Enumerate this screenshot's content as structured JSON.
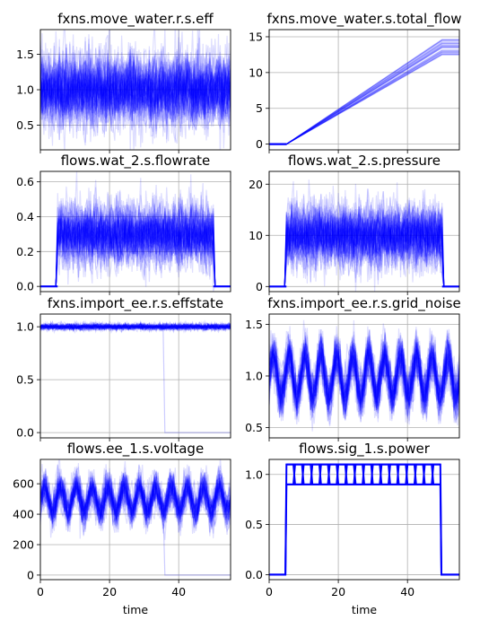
{
  "figure": {
    "line_color": "#0000ff",
    "grid_color": "#b0b0b0",
    "xlabel": "time"
  },
  "chart_data": [
    {
      "type": "line",
      "title": "fxns.move_water.r.s.eff",
      "xlim": [
        0,
        55
      ],
      "ylim": [
        0.15,
        1.85
      ],
      "xticks": [
        0,
        20,
        40
      ],
      "yticks": [
        0.5,
        1.0,
        1.5
      ],
      "ytick_labels": [
        "0.5",
        "1.0",
        "1.5"
      ],
      "show_x_tick_labels": false,
      "grid": true,
      "pattern": "noise",
      "mean": 1.0,
      "band": 0.25,
      "series_description": "many overlaid semi-transparent blue traces fluctuating around 1.0"
    },
    {
      "type": "line",
      "title": "fxns.move_water.s.total_flow",
      "xlim": [
        0,
        55
      ],
      "ylim": [
        -0.8,
        16
      ],
      "xticks": [
        0,
        20,
        40
      ],
      "yticks": [
        0,
        5,
        10,
        15
      ],
      "ytick_labels": [
        "0",
        "5",
        "10",
        "15"
      ],
      "show_x_tick_labels": false,
      "grid": true,
      "pattern": "ramp",
      "x_start": 5,
      "x_end": 50,
      "y_end": 13.5,
      "end_spread": 1.2,
      "series_description": "cumulative flow rising linearly from 0 at t=5 to about 13.5 at t=50, then flat"
    },
    {
      "type": "line",
      "title": "flows.wat_2.s.flowrate",
      "xlim": [
        0,
        55
      ],
      "ylim": [
        -0.03,
        0.66
      ],
      "xticks": [
        0,
        20,
        40
      ],
      "yticks": [
        0.0,
        0.2,
        0.4,
        0.6
      ],
      "ytick_labels": [
        "0.0",
        "0.2",
        "0.4",
        "0.6"
      ],
      "show_x_tick_labels": false,
      "grid": true,
      "pattern": "pulse",
      "x_start": 5,
      "x_end": 50,
      "mean": 0.3,
      "band": 0.09,
      "series_description": "zero until t=5, noisy around 0.3 until t=50, then back to zero"
    },
    {
      "type": "line",
      "title": "flows.wat_2.s.pressure",
      "xlim": [
        0,
        55
      ],
      "ylim": [
        -1,
        22.5
      ],
      "xticks": [
        0,
        20,
        40
      ],
      "yticks": [
        0,
        10,
        20
      ],
      "ytick_labels": [
        "0",
        "10",
        "20"
      ],
      "show_x_tick_labels": false,
      "grid": true,
      "pattern": "pulse",
      "x_start": 5,
      "x_end": 50,
      "mean": 10,
      "band": 3,
      "series_description": "zero until t=5, noisy around 10 until t=50, then back to zero"
    },
    {
      "type": "line",
      "title": "fxns.import_ee.r.s.effstate",
      "xlim": [
        0,
        55
      ],
      "ylim": [
        -0.05,
        1.12
      ],
      "xticks": [
        0,
        20,
        40
      ],
      "yticks": [
        0.0,
        0.5,
        1.0
      ],
      "ytick_labels": [
        "0.0",
        "0.5",
        "1.0"
      ],
      "show_x_tick_labels": false,
      "grid": true,
      "pattern": "effstate",
      "mean": 1.0,
      "band": 0.03,
      "drop_x": 36,
      "drop_to": 0,
      "series_description": "tight band around 1.0 with one faint trace dropping to 0 at about t=36"
    },
    {
      "type": "line",
      "title": "fxns.import_ee.r.s.grid_noise",
      "xlim": [
        0,
        55
      ],
      "ylim": [
        0.4,
        1.6
      ],
      "xticks": [
        0,
        20,
        40
      ],
      "yticks": [
        0.5,
        1.0,
        1.5
      ],
      "ytick_labels": [
        "0.5",
        "1.0",
        "1.5"
      ],
      "show_x_tick_labels": false,
      "grid": true,
      "pattern": "oscillation",
      "mean": 1.0,
      "amplitude": 0.2,
      "period": 4.6,
      "band": 0.12,
      "series_description": "periodic oscillation around 1.0 with noise"
    },
    {
      "type": "line",
      "title": "flows.ee_1.s.voltage",
      "xlim": [
        0,
        55
      ],
      "ylim": [
        -30,
        760
      ],
      "xticks": [
        0,
        20,
        40
      ],
      "yticks": [
        0,
        200,
        400,
        600
      ],
      "ytick_labels": [
        "0",
        "200",
        "400",
        "600"
      ],
      "show_x_tick_labels": true,
      "xtick_labels": [
        "0",
        "20",
        "40"
      ],
      "grid": true,
      "pattern": "oscillation",
      "mean": 500,
      "amplitude": 80,
      "period": 4.6,
      "band": 60,
      "drop_x": 36,
      "drop_to": 0,
      "series_description": "periodic oscillation around 500 with one faint trace dropping to 0 at about t=36"
    },
    {
      "type": "line",
      "title": "flows.sig_1.s.power",
      "xlim": [
        0,
        55
      ],
      "ylim": [
        -0.05,
        1.15
      ],
      "xticks": [
        0,
        20,
        40
      ],
      "yticks": [
        0.0,
        0.5,
        1.0
      ],
      "ytick_labels": [
        "0.0",
        "0.5",
        "1.0"
      ],
      "show_x_tick_labels": true,
      "xtick_labels": [
        "0",
        "20",
        "40"
      ],
      "grid": true,
      "pattern": "square",
      "x_start": 5,
      "x_end": 49.5,
      "levels": [
        0.9,
        1.1
      ],
      "period": 5,
      "series_description": "zero until t=5, alternating between 0.9 and 1.1 until about t=49.5, then zero"
    }
  ]
}
